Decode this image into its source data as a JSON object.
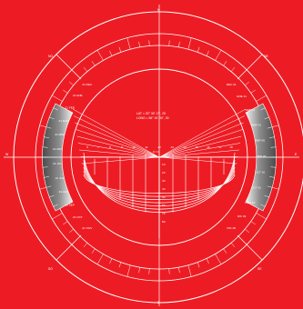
{
  "diagram": {
    "colors": {
      "background": "#ed1c24",
      "lines": "#ffffff",
      "band_gradient": [
        "#f2f2f2",
        "#8c8c8c",
        "#4a4a4a"
      ]
    },
    "coordinates": {
      "lat": "LAT = 20° 30' 17\", 25",
      "long": "LONG = 56° 15' 30\", 30"
    },
    "center_label": "0 = 0",
    "cardinals": {
      "north": "N",
      "east": "E",
      "west": "W",
      "south": "S"
    },
    "corner_labels": {
      "nw": "NO",
      "ne": "NE",
      "sw": "SO",
      "se": "SE"
    },
    "left_dates": [
      "21 DEC",
      "21 ENE",
      "21 FEB",
      "21 MAR",
      "21 ABR",
      "21 MAY",
      "21 JUN",
      "21 JUL",
      "21 AGO",
      "21 SEP",
      "21 OCT",
      "21 NOV"
    ],
    "right_dates": [
      "DEC 21",
      "ENE 11",
      "FEB 01",
      "MAR 01",
      "ABR 06",
      "SEP 26",
      "OCT 16",
      "OCT 31",
      "NOV 16",
      "DIC 01",
      "DIC 06"
    ],
    "hour_labels": [
      "6",
      "7",
      "8",
      "9",
      "10",
      "11",
      "12",
      "13",
      "14",
      "15",
      "16",
      "17",
      "18"
    ],
    "altitude_labels": [
      "10",
      "20",
      "30",
      "40",
      "50",
      "60",
      "70",
      "80"
    ]
  }
}
